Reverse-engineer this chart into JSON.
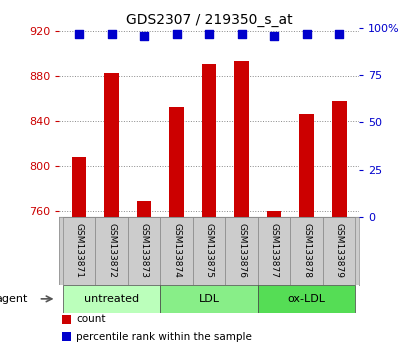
{
  "title": "GDS2307 / 219350_s_at",
  "samples": [
    "GSM133871",
    "GSM133872",
    "GSM133873",
    "GSM133874",
    "GSM133875",
    "GSM133876",
    "GSM133877",
    "GSM133878",
    "GSM133879"
  ],
  "count_values": [
    808,
    882,
    769,
    852,
    890,
    893,
    760,
    846,
    858
  ],
  "percentile_values": [
    97,
    97,
    96,
    97,
    97,
    97,
    96,
    97,
    97
  ],
  "ylim_left": [
    755,
    922
  ],
  "ylim_right": [
    0,
    100
  ],
  "yticks_left": [
    760,
    800,
    840,
    880,
    920
  ],
  "ytick_labels_left": [
    "760",
    "800",
    "840",
    "880",
    "920"
  ],
  "yticks_right": [
    0,
    25,
    50,
    75,
    100
  ],
  "ytick_labels_right": [
    "0",
    "25",
    "50",
    "75",
    "100%"
  ],
  "bar_color": "#cc0000",
  "dot_color": "#0000cc",
  "groups": [
    {
      "label": "untreated",
      "indices": [
        0,
        1,
        2
      ],
      "color": "#bbffbb"
    },
    {
      "label": "LDL",
      "indices": [
        3,
        4,
        5
      ],
      "color": "#88ee88"
    },
    {
      "label": "ox-LDL",
      "indices": [
        6,
        7,
        8
      ],
      "color": "#55dd55"
    }
  ],
  "agent_label": "agent",
  "legend_items": [
    {
      "label": "count",
      "color": "#cc0000"
    },
    {
      "label": "percentile rank within the sample",
      "color": "#0000cc"
    }
  ],
  "bar_width": 0.45,
  "dot_size": 30,
  "background_color": "#ffffff",
  "plot_bg_color": "#ffffff",
  "grid_color": "#888888",
  "left_tick_color": "#cc0000",
  "right_tick_color": "#0000cc",
  "sample_cell_color": "#cccccc"
}
